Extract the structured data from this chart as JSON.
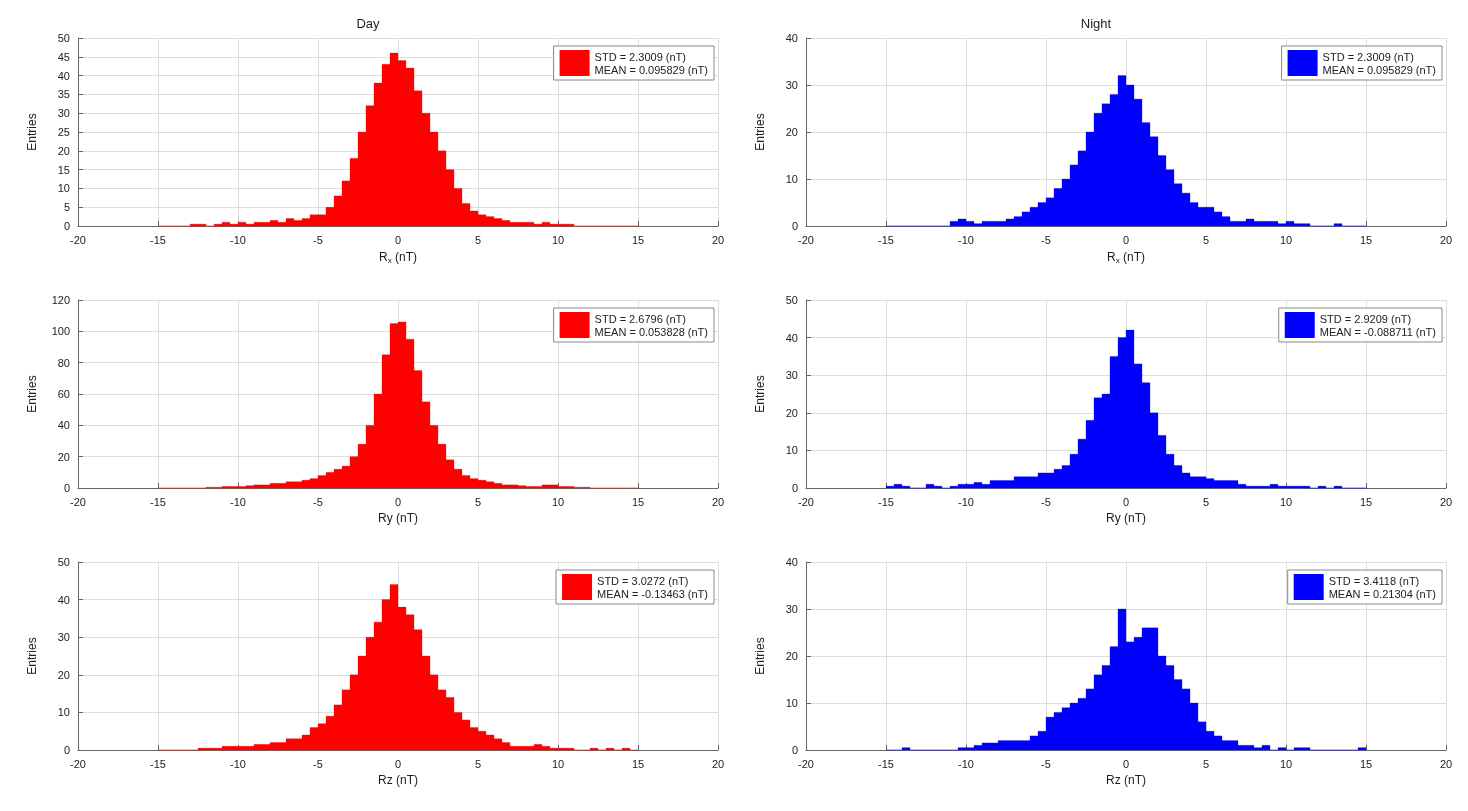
{
  "chart_data": [
    {
      "type": "histogram",
      "title": "Day",
      "xlabel": "R$_{x}$ (nT)",
      "ylabel": "Entries",
      "xlim": [
        -20,
        20
      ],
      "xticks": [
        -20,
        -15,
        -10,
        -5,
        0,
        5,
        10,
        15,
        20
      ],
      "ylim": [
        0,
        50
      ],
      "yticks": [
        0,
        5,
        10,
        15,
        20,
        25,
        30,
        35,
        40,
        45,
        50
      ],
      "grid": true,
      "legend": "top right",
      "bins": [
        -15,
        -14.5,
        -14,
        -13.5,
        -13,
        -12.5,
        -12,
        -11.5,
        -11,
        -10.5,
        -10,
        -9.5,
        -9,
        -8.5,
        -8,
        -7.5,
        -7,
        -6.5,
        -6,
        -5.5,
        -5,
        -4.5,
        -4,
        -3.5,
        -3,
        -2.5,
        -2,
        -1.5,
        -1,
        -0.5,
        0,
        0.5,
        1,
        1.5,
        2,
        2.5,
        3,
        3.5,
        4,
        4.5,
        5,
        5.5,
        6,
        6.5,
        7,
        7.5,
        8,
        8.5,
        9,
        9.5,
        10,
        10.5,
        11,
        11.5,
        12,
        12.5,
        13,
        13.5,
        14,
        14.5,
        15
      ],
      "series": [
        {
          "name": "STD = 2.3009 (nT)\nMEAN = 0.095829 (nT)",
          "color": "#ff0000",
          "values": [
            0,
            0,
            0,
            0,
            0.5,
            0.5,
            0,
            0.5,
            1,
            0.5,
            1,
            0.5,
            1,
            1,
            1.5,
            1,
            2,
            1.5,
            2,
            3,
            3,
            5,
            8,
            12,
            18,
            25,
            32,
            38,
            43,
            46,
            44,
            42,
            36,
            30,
            25,
            20,
            15,
            10,
            6,
            4,
            3,
            2.5,
            2,
            1.5,
            1,
            1,
            1,
            0.5,
            1,
            0.5,
            0.5,
            0.5,
            0,
            0,
            0,
            0,
            0,
            0,
            0,
            0
          ]
        }
      ]
    },
    {
      "type": "histogram",
      "title": "Night",
      "xlabel": "R$_{x}$ (nT)",
      "ylabel": "Entries",
      "xlim": [
        -20,
        20
      ],
      "xticks": [
        -20,
        -15,
        -10,
        -5,
        0,
        5,
        10,
        15,
        20
      ],
      "ylim": [
        0,
        40
      ],
      "yticks": [
        0,
        10,
        20,
        30,
        40
      ],
      "grid": true,
      "legend": "top right",
      "bins": [
        -15,
        -14.5,
        -14,
        -13.5,
        -13,
        -12.5,
        -12,
        -11.5,
        -11,
        -10.5,
        -10,
        -9.5,
        -9,
        -8.5,
        -8,
        -7.5,
        -7,
        -6.5,
        -6,
        -5.5,
        -5,
        -4.5,
        -4,
        -3.5,
        -3,
        -2.5,
        -2,
        -1.5,
        -1,
        -0.5,
        0,
        0.5,
        1,
        1.5,
        2,
        2.5,
        3,
        3.5,
        4,
        4.5,
        5,
        5.5,
        6,
        6.5,
        7,
        7.5,
        8,
        8.5,
        9,
        9.5,
        10,
        10.5,
        11,
        11.5,
        12,
        12.5,
        13,
        13.5,
        14,
        14.5,
        15
      ],
      "series": [
        {
          "name": "STD = 2.3009 (nT)\nMEAN = 0.095829 (nT)",
          "color": "#0000ff",
          "values": [
            0,
            0,
            0,
            0,
            0,
            0,
            0,
            0,
            1,
            1.5,
            1,
            0.5,
            1,
            1,
            1,
            1.5,
            2,
            3,
            4,
            5,
            6,
            8,
            10,
            13,
            16,
            20,
            24,
            26,
            28,
            32,
            30,
            27,
            22,
            19,
            15,
            12,
            9,
            7,
            5,
            4,
            4,
            3,
            2,
            1,
            1,
            1.5,
            1,
            1,
            1,
            0.5,
            1,
            0.5,
            0.5,
            0,
            0,
            0,
            0.5,
            0,
            0,
            0
          ]
        }
      ]
    },
    {
      "type": "histogram",
      "xlabel": "Ry (nT)",
      "ylabel": "Entries",
      "xlim": [
        -20,
        20
      ],
      "xticks": [
        -20,
        -15,
        -10,
        -5,
        0,
        5,
        10,
        15,
        20
      ],
      "ylim": [
        0,
        120
      ],
      "yticks": [
        0,
        20,
        40,
        60,
        80,
        100,
        120
      ],
      "grid": true,
      "legend": "top right",
      "bins": [
        -15,
        -14.5,
        -14,
        -13.5,
        -13,
        -12.5,
        -12,
        -11.5,
        -11,
        -10.5,
        -10,
        -9.5,
        -9,
        -8.5,
        -8,
        -7.5,
        -7,
        -6.5,
        -6,
        -5.5,
        -5,
        -4.5,
        -4,
        -3.5,
        -3,
        -2.5,
        -2,
        -1.5,
        -1,
        -0.5,
        0,
        0.5,
        1,
        1.5,
        2,
        2.5,
        3,
        3.5,
        4,
        4.5,
        5,
        5.5,
        6,
        6.5,
        7,
        7.5,
        8,
        8.5,
        9,
        9.5,
        10,
        10.5,
        11,
        11.5,
        12,
        12.5,
        13,
        13.5,
        14,
        14.5,
        15
      ],
      "series": [
        {
          "name": "STD = 2.6796 (nT)\nMEAN = 0.053828 (nT)",
          "color": "#ff0000",
          "values": [
            0,
            0,
            0,
            0,
            0,
            0,
            0.5,
            0.5,
            1,
            1,
            1,
            1.5,
            2,
            2,
            3,
            3,
            4,
            4,
            5,
            6,
            8,
            10,
            12,
            14,
            20,
            28,
            40,
            60,
            85,
            105,
            106,
            95,
            75,
            55,
            40,
            28,
            18,
            12,
            8,
            6,
            5,
            4,
            3,
            2,
            2,
            1.5,
            1,
            1,
            2,
            2,
            1,
            1,
            0.5,
            0.5,
            0,
            0,
            0,
            0,
            0,
            0
          ]
        }
      ]
    },
    {
      "type": "histogram",
      "xlabel": "Ry (nT)",
      "ylabel": "Entries",
      "xlim": [
        -20,
        20
      ],
      "xticks": [
        -20,
        -15,
        -10,
        -5,
        0,
        5,
        10,
        15,
        20
      ],
      "ylim": [
        0,
        50
      ],
      "yticks": [
        0,
        10,
        20,
        30,
        40,
        50
      ],
      "grid": true,
      "legend": "top right",
      "bins": [
        -15,
        -14.5,
        -14,
        -13.5,
        -13,
        -12.5,
        -12,
        -11.5,
        -11,
        -10.5,
        -10,
        -9.5,
        -9,
        -8.5,
        -8,
        -7.5,
        -7,
        -6.5,
        -6,
        -5.5,
        -5,
        -4.5,
        -4,
        -3.5,
        -3,
        -2.5,
        -2,
        -1.5,
        -1,
        -0.5,
        0,
        0.5,
        1,
        1.5,
        2,
        2.5,
        3,
        3.5,
        4,
        4.5,
        5,
        5.5,
        6,
        6.5,
        7,
        7.5,
        8,
        8.5,
        9,
        9.5,
        10,
        10.5,
        11,
        11.5,
        12,
        12.5,
        13,
        13.5,
        14,
        14.5,
        15
      ],
      "series": [
        {
          "name": "STD = 2.9209 (nT)\nMEAN = -0.088711 (nT)",
          "color": "#0000ff",
          "values": [
            0.5,
            1,
            0.5,
            0,
            0,
            1,
            0.5,
            0,
            0.5,
            1,
            1,
            1.5,
            1,
            2,
            2,
            2,
            3,
            3,
            3,
            4,
            4,
            5,
            6,
            9,
            13,
            18,
            24,
            25,
            35,
            40,
            42,
            33,
            28,
            20,
            14,
            9,
            6,
            4,
            3,
            3,
            2.5,
            2,
            2,
            2,
            1,
            0.5,
            0.5,
            0.5,
            1,
            0.5,
            0.5,
            0.5,
            0.5,
            0,
            0.5,
            0,
            0.5,
            0,
            0,
            0
          ]
        }
      ]
    },
    {
      "type": "histogram",
      "xlabel": "Rz (nT)",
      "ylabel": "Entries",
      "xlim": [
        -20,
        20
      ],
      "xticks": [
        -20,
        -15,
        -10,
        -5,
        0,
        5,
        10,
        15,
        20
      ],
      "ylim": [
        0,
        50
      ],
      "yticks": [
        0,
        10,
        20,
        30,
        40,
        50
      ],
      "grid": true,
      "legend": "top right",
      "bins": [
        -15,
        -14.5,
        -14,
        -13.5,
        -13,
        -12.5,
        -12,
        -11.5,
        -11,
        -10.5,
        -10,
        -9.5,
        -9,
        -8.5,
        -8,
        -7.5,
        -7,
        -6.5,
        -6,
        -5.5,
        -5,
        -4.5,
        -4,
        -3.5,
        -3,
        -2.5,
        -2,
        -1.5,
        -1,
        -0.5,
        0,
        0.5,
        1,
        1.5,
        2,
        2.5,
        3,
        3.5,
        4,
        4.5,
        5,
        5.5,
        6,
        6.5,
        7,
        7.5,
        8,
        8.5,
        9,
        9.5,
        10,
        10.5,
        11,
        11.5,
        12,
        12.5,
        13,
        13.5,
        14,
        14.5,
        15
      ],
      "series": [
        {
          "name": "STD = 3.0272 (nT)\nMEAN = -0.13463 (nT)",
          "color": "#ff0000",
          "values": [
            0,
            0,
            0,
            0,
            0,
            0.5,
            0.5,
            0.5,
            1,
            1,
            1,
            1,
            1.5,
            1.5,
            2,
            2,
            3,
            3,
            4,
            6,
            7,
            9,
            12,
            16,
            20,
            25,
            30,
            34,
            40,
            44,
            38,
            36,
            32,
            25,
            20,
            16,
            14,
            10,
            8,
            6,
            5,
            4,
            3,
            2,
            1,
            1,
            1,
            1.5,
            1,
            0.5,
            0.5,
            0.5,
            0,
            0,
            0.5,
            0,
            0.5,
            0,
            0.5,
            0
          ]
        }
      ]
    },
    {
      "type": "histogram",
      "xlabel": "Rz (nT)",
      "ylabel": "Entries",
      "xlim": [
        -20,
        20
      ],
      "xticks": [
        -20,
        -15,
        -10,
        -5,
        0,
        5,
        10,
        15,
        20
      ],
      "ylim": [
        0,
        40
      ],
      "yticks": [
        0,
        10,
        20,
        30,
        40
      ],
      "grid": true,
      "legend": "top right",
      "bins": [
        -15,
        -14.5,
        -14,
        -13.5,
        -13,
        -12.5,
        -12,
        -11.5,
        -11,
        -10.5,
        -10,
        -9.5,
        -9,
        -8.5,
        -8,
        -7.5,
        -7,
        -6.5,
        -6,
        -5.5,
        -5,
        -4.5,
        -4,
        -3.5,
        -3,
        -2.5,
        -2,
        -1.5,
        -1,
        -0.5,
        0,
        0.5,
        1,
        1.5,
        2,
        2.5,
        3,
        3.5,
        4,
        4.5,
        5,
        5.5,
        6,
        6.5,
        7,
        7.5,
        8,
        8.5,
        9,
        9.5,
        10,
        10.5,
        11,
        11.5,
        12,
        12.5,
        13,
        13.5,
        14,
        14.5,
        15
      ],
      "series": [
        {
          "name": "STD = 3.4118 (nT)\nMEAN = 0.21304 (nT)",
          "color": "#0000ff",
          "values": [
            0,
            0,
            0.5,
            0,
            0,
            0,
            0,
            0,
            0,
            0.5,
            0.5,
            1,
            1.5,
            1.5,
            2,
            2,
            2,
            2,
            3,
            4,
            7,
            8,
            9,
            10,
            11,
            13,
            16,
            18,
            22,
            30,
            23,
            24,
            26,
            26,
            20,
            18,
            15,
            13,
            10,
            6,
            4,
            3,
            2,
            2,
            1,
            1,
            0.5,
            1,
            0,
            0.5,
            0,
            0.5,
            0.5,
            0,
            0,
            0,
            0,
            0,
            0,
            0.5
          ]
        }
      ]
    }
  ]
}
